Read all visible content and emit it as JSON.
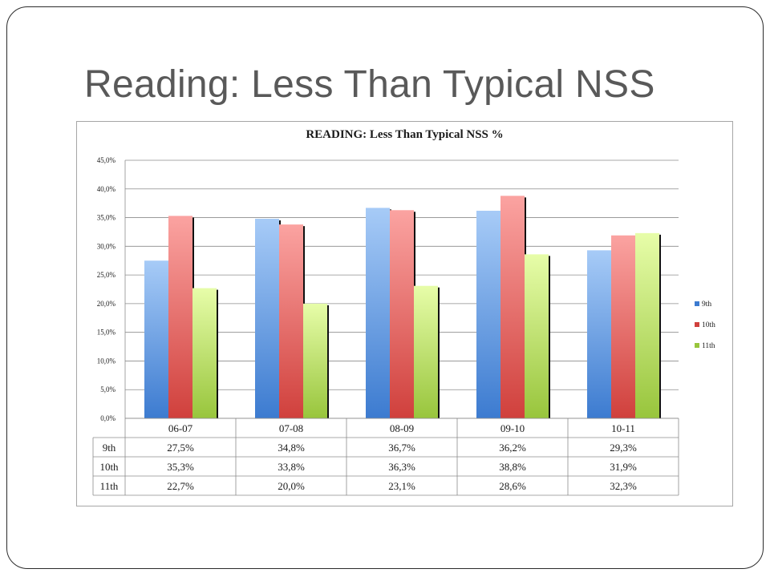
{
  "slide": {
    "title": "Reading:  Less Than Typical NSS"
  },
  "chart_data": {
    "type": "bar",
    "title": "READING: Less Than Typical NSS %",
    "xlabel": "",
    "ylabel": "",
    "categories": [
      "06-07",
      "07-08",
      "08-09",
      "09-10",
      "10-11"
    ],
    "series": [
      {
        "name": "9th",
        "values": [
          27.5,
          34.8,
          36.7,
          36.2,
          29.3
        ],
        "labels": [
          "27,5%",
          "34,8%",
          "36,7%",
          "36,2%",
          "29,3%"
        ],
        "color_top": "#a7cbf7",
        "color_bottom": "#3c7bd0"
      },
      {
        "name": "10th",
        "values": [
          35.3,
          33.8,
          36.3,
          38.8,
          31.9
        ],
        "labels": [
          "35,3%",
          "33,8%",
          "36,3%",
          "38,8%",
          "31,9%"
        ],
        "color_top": "#fba3a1",
        "color_bottom": "#d0403c"
      },
      {
        "name": "11th",
        "values": [
          22.7,
          20.0,
          23.1,
          28.6,
          32.3
        ],
        "labels": [
          "22,7%",
          "20,0%",
          "23,1%",
          "28,6%",
          "32,3%"
        ],
        "color_top": "#e7fda9",
        "color_bottom": "#98c53c"
      }
    ],
    "ylim": [
      0,
      45
    ],
    "yticks": [
      0,
      5,
      10,
      15,
      20,
      25,
      30,
      35,
      40,
      45
    ],
    "ytick_labels": [
      "0,0%",
      "5,0%",
      "10,0%",
      "15,0%",
      "20,0%",
      "25,0%",
      "30,0%",
      "35,0%",
      "40,0%",
      "45,0%"
    ],
    "grid": true,
    "legend": "right",
    "data_table": true
  }
}
